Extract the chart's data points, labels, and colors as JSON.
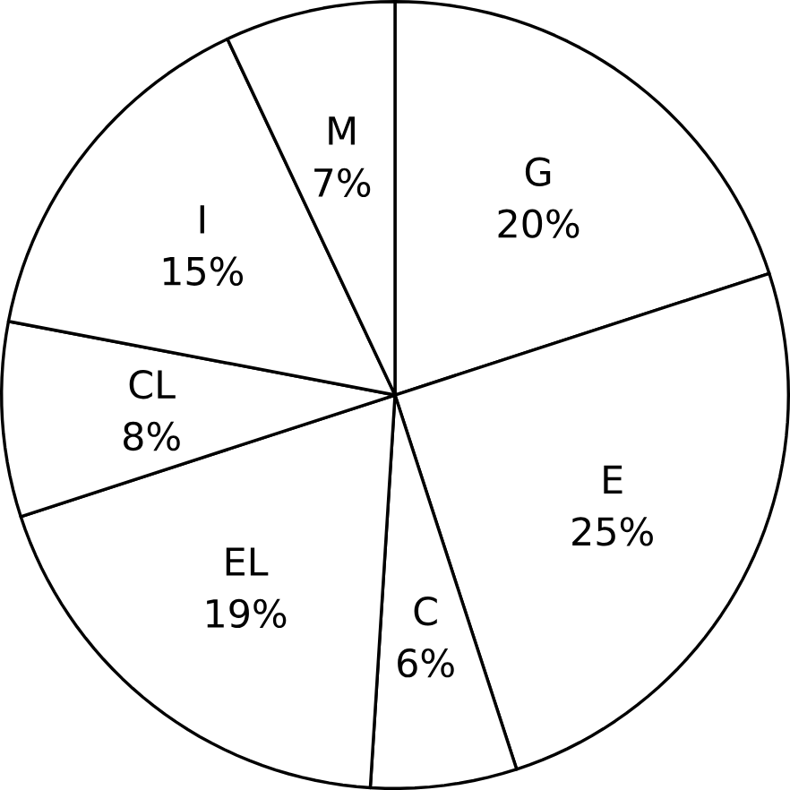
{
  "chart_data": {
    "type": "pie",
    "categories": [
      "G",
      "E",
      "C",
      "EL",
      "CL",
      "I",
      "M"
    ],
    "values": [
      20,
      25,
      6,
      19,
      8,
      15,
      7
    ],
    "value_labels": [
      "20%",
      "25%",
      "6%",
      "19%",
      "8%",
      "15%",
      "7%"
    ],
    "colors": [
      "#ffffff",
      "#ffffff",
      "#ffffff",
      "#ffffff",
      "#ffffff",
      "#ffffff",
      "#ffffff"
    ]
  }
}
